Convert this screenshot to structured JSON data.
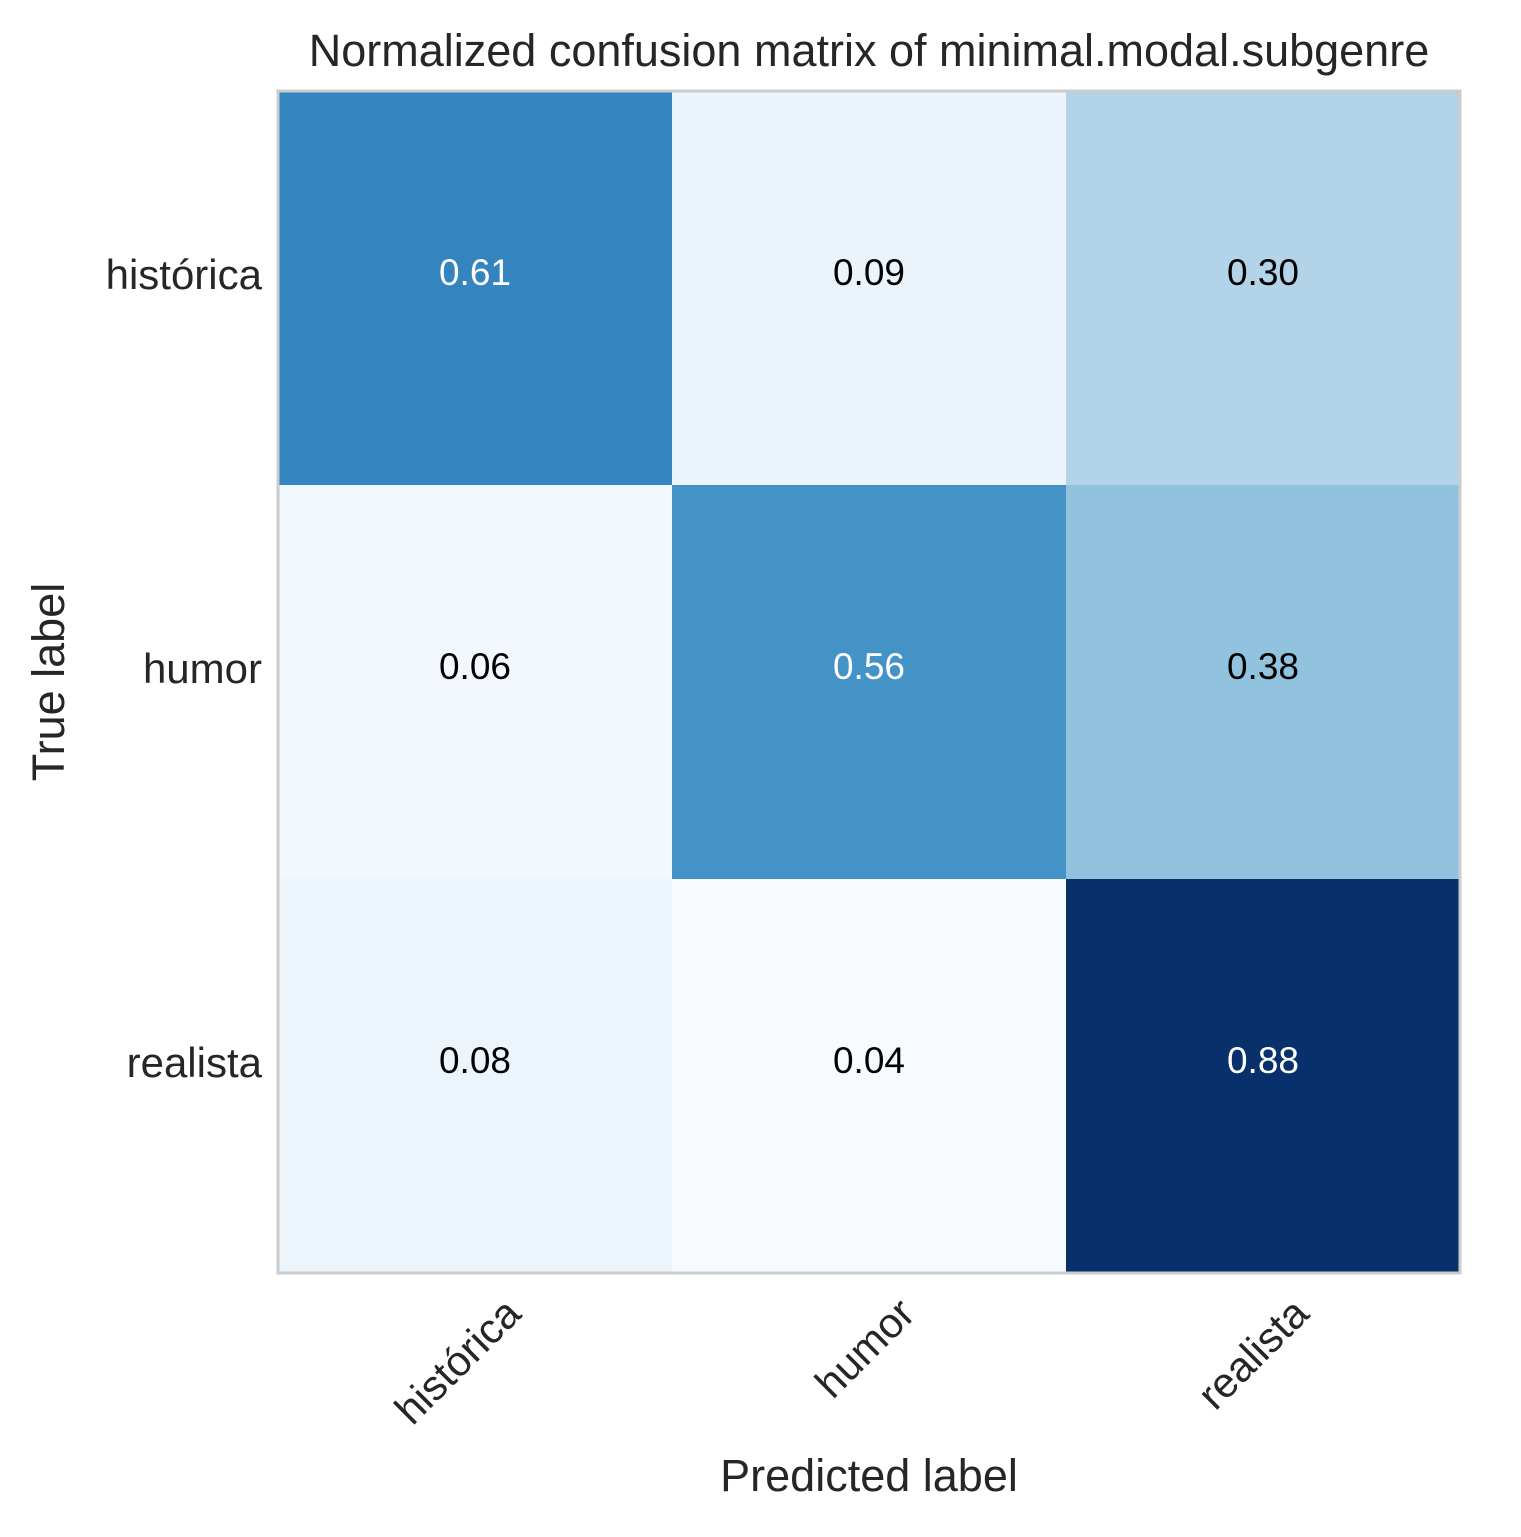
{
  "chart_data": {
    "type": "heatmap",
    "title": "Normalized confusion matrix of minimal.modal.subgenre",
    "xlabel": "Predicted label",
    "ylabel": "True label",
    "x_categories": [
      "histórica",
      "humor",
      "realista"
    ],
    "y_categories": [
      "histórica",
      "humor",
      "realista"
    ],
    "values": [
      [
        0.61,
        0.09,
        0.3
      ],
      [
        0.06,
        0.56,
        0.38
      ],
      [
        0.08,
        0.04,
        0.88
      ]
    ],
    "value_labels": [
      [
        "0.61",
        "0.09",
        "0.30"
      ],
      [
        "0.06",
        "0.56",
        "0.38"
      ],
      [
        "0.08",
        "0.04",
        "0.88"
      ]
    ],
    "colormap": "Blues",
    "vmin": 0.04,
    "vmax": 0.88,
    "grid": false,
    "colorbar": false,
    "colors": {
      "text_dark": "#000000",
      "text_light": "#ffffff",
      "frame": "#cccccc"
    }
  }
}
